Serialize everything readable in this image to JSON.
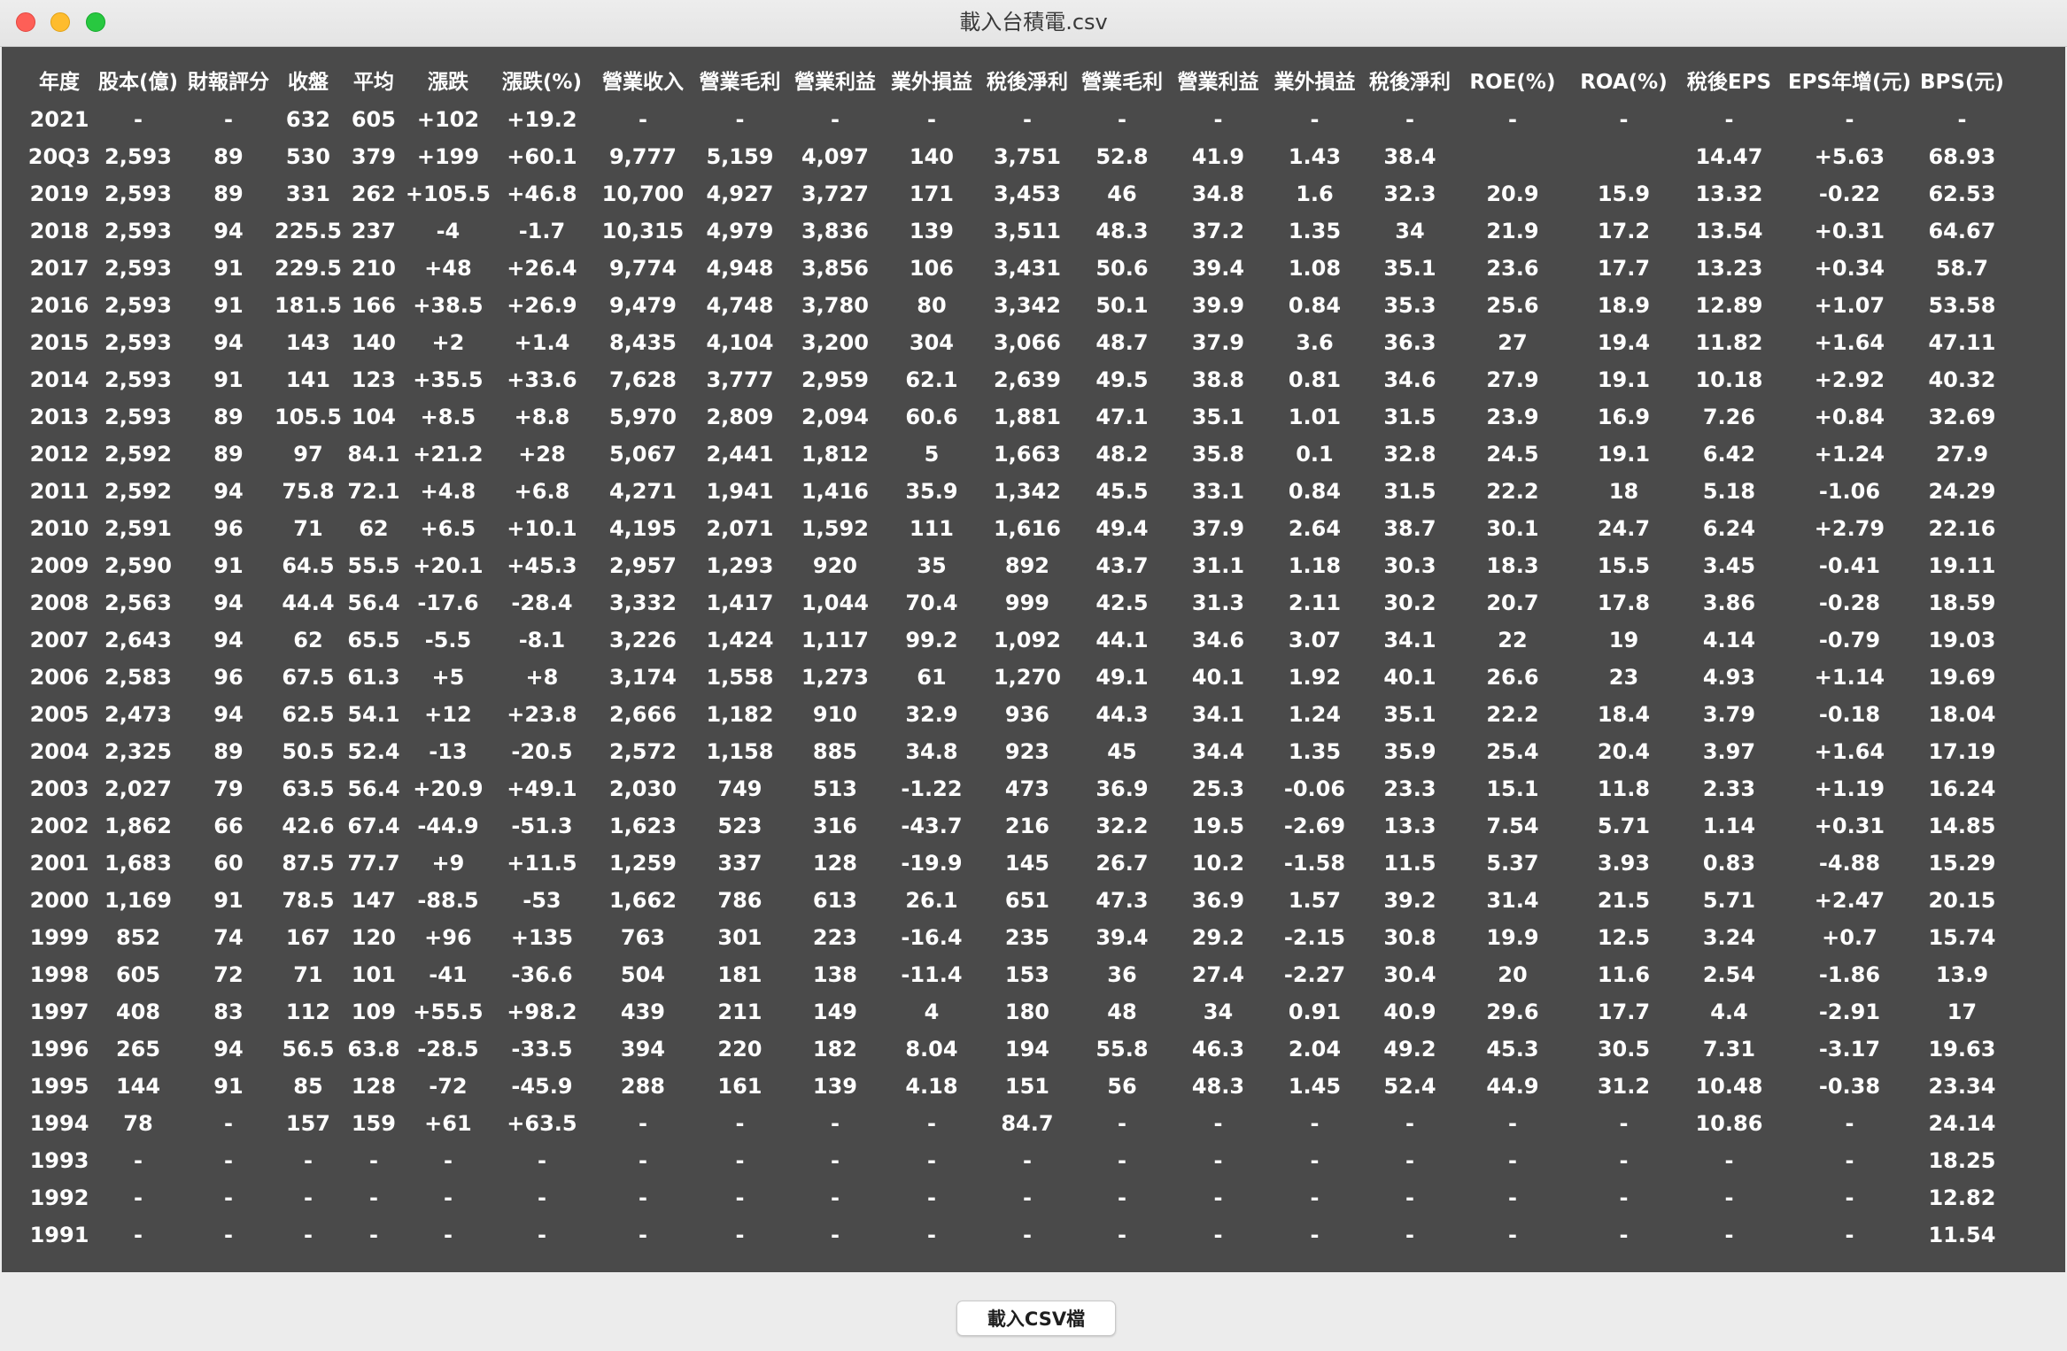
{
  "window": {
    "title": "載入台積電.csv"
  },
  "table": {
    "headers": [
      "年度",
      "股本(億)",
      "財報評分",
      "收盤",
      "平均",
      "漲跌",
      "漲跌(%)",
      "營業收入",
      "營業毛利",
      "營業利益",
      "業外損益",
      "稅後淨利",
      "營業毛利",
      "營業利益",
      "業外損益",
      "稅後淨利",
      "ROE(%)",
      "ROA(%)",
      "稅後EPS",
      "EPS年增(元)",
      "BPS(元)"
    ],
    "rows": [
      [
        "2021",
        "-",
        "-",
        "632",
        "605",
        "+102",
        "+19.2",
        "-",
        "-",
        "-",
        "-",
        "-",
        "-",
        "-",
        "-",
        "-",
        "-",
        "-",
        "-",
        "-",
        "-"
      ],
      [
        "20Q3",
        "2,593",
        "89",
        "530",
        "379",
        "+199",
        "+60.1",
        "9,777",
        "5,159",
        "4,097",
        "140",
        "3,751",
        "52.8",
        "41.9",
        "1.43",
        "38.4",
        "",
        "",
        "14.47",
        "+5.63",
        "68.93"
      ],
      [
        "2019",
        "2,593",
        "89",
        "331",
        "262",
        "+105.5",
        "+46.8",
        "10,700",
        "4,927",
        "3,727",
        "171",
        "3,453",
        "46",
        "34.8",
        "1.6",
        "32.3",
        "20.9",
        "15.9",
        "13.32",
        "-0.22",
        "62.53"
      ],
      [
        "2018",
        "2,593",
        "94",
        "225.5",
        "237",
        "-4",
        "-1.7",
        "10,315",
        "4,979",
        "3,836",
        "139",
        "3,511",
        "48.3",
        "37.2",
        "1.35",
        "34",
        "21.9",
        "17.2",
        "13.54",
        "+0.31",
        "64.67"
      ],
      [
        "2017",
        "2,593",
        "91",
        "229.5",
        "210",
        "+48",
        "+26.4",
        "9,774",
        "4,948",
        "3,856",
        "106",
        "3,431",
        "50.6",
        "39.4",
        "1.08",
        "35.1",
        "23.6",
        "17.7",
        "13.23",
        "+0.34",
        "58.7"
      ],
      [
        "2016",
        "2,593",
        "91",
        "181.5",
        "166",
        "+38.5",
        "+26.9",
        "9,479",
        "4,748",
        "3,780",
        "80",
        "3,342",
        "50.1",
        "39.9",
        "0.84",
        "35.3",
        "25.6",
        "18.9",
        "12.89",
        "+1.07",
        "53.58"
      ],
      [
        "2015",
        "2,593",
        "94",
        "143",
        "140",
        "+2",
        "+1.4",
        "8,435",
        "4,104",
        "3,200",
        "304",
        "3,066",
        "48.7",
        "37.9",
        "3.6",
        "36.3",
        "27",
        "19.4",
        "11.82",
        "+1.64",
        "47.11"
      ],
      [
        "2014",
        "2,593",
        "91",
        "141",
        "123",
        "+35.5",
        "+33.6",
        "7,628",
        "3,777",
        "2,959",
        "62.1",
        "2,639",
        "49.5",
        "38.8",
        "0.81",
        "34.6",
        "27.9",
        "19.1",
        "10.18",
        "+2.92",
        "40.32"
      ],
      [
        "2013",
        "2,593",
        "89",
        "105.5",
        "104",
        "+8.5",
        "+8.8",
        "5,970",
        "2,809",
        "2,094",
        "60.6",
        "1,881",
        "47.1",
        "35.1",
        "1.01",
        "31.5",
        "23.9",
        "16.9",
        "7.26",
        "+0.84",
        "32.69"
      ],
      [
        "2012",
        "2,592",
        "89",
        "97",
        "84.1",
        "+21.2",
        "+28",
        "5,067",
        "2,441",
        "1,812",
        "5",
        "1,663",
        "48.2",
        "35.8",
        "0.1",
        "32.8",
        "24.5",
        "19.1",
        "6.42",
        "+1.24",
        "27.9"
      ],
      [
        "2011",
        "2,592",
        "94",
        "75.8",
        "72.1",
        "+4.8",
        "+6.8",
        "4,271",
        "1,941",
        "1,416",
        "35.9",
        "1,342",
        "45.5",
        "33.1",
        "0.84",
        "31.5",
        "22.2",
        "18",
        "5.18",
        "-1.06",
        "24.29"
      ],
      [
        "2010",
        "2,591",
        "96",
        "71",
        "62",
        "+6.5",
        "+10.1",
        "4,195",
        "2,071",
        "1,592",
        "111",
        "1,616",
        "49.4",
        "37.9",
        "2.64",
        "38.7",
        "30.1",
        "24.7",
        "6.24",
        "+2.79",
        "22.16"
      ],
      [
        "2009",
        "2,590",
        "91",
        "64.5",
        "55.5",
        "+20.1",
        "+45.3",
        "2,957",
        "1,293",
        "920",
        "35",
        "892",
        "43.7",
        "31.1",
        "1.18",
        "30.3",
        "18.3",
        "15.5",
        "3.45",
        "-0.41",
        "19.11"
      ],
      [
        "2008",
        "2,563",
        "94",
        "44.4",
        "56.4",
        "-17.6",
        "-28.4",
        "3,332",
        "1,417",
        "1,044",
        "70.4",
        "999",
        "42.5",
        "31.3",
        "2.11",
        "30.2",
        "20.7",
        "17.8",
        "3.86",
        "-0.28",
        "18.59"
      ],
      [
        "2007",
        "2,643",
        "94",
        "62",
        "65.5",
        "-5.5",
        "-8.1",
        "3,226",
        "1,424",
        "1,117",
        "99.2",
        "1,092",
        "44.1",
        "34.6",
        "3.07",
        "34.1",
        "22",
        "19",
        "4.14",
        "-0.79",
        "19.03"
      ],
      [
        "2006",
        "2,583",
        "96",
        "67.5",
        "61.3",
        "+5",
        "+8",
        "3,174",
        "1,558",
        "1,273",
        "61",
        "1,270",
        "49.1",
        "40.1",
        "1.92",
        "40.1",
        "26.6",
        "23",
        "4.93",
        "+1.14",
        "19.69"
      ],
      [
        "2005",
        "2,473",
        "94",
        "62.5",
        "54.1",
        "+12",
        "+23.8",
        "2,666",
        "1,182",
        "910",
        "32.9",
        "936",
        "44.3",
        "34.1",
        "1.24",
        "35.1",
        "22.2",
        "18.4",
        "3.79",
        "-0.18",
        "18.04"
      ],
      [
        "2004",
        "2,325",
        "89",
        "50.5",
        "52.4",
        "-13",
        "-20.5",
        "2,572",
        "1,158",
        "885",
        "34.8",
        "923",
        "45",
        "34.4",
        "1.35",
        "35.9",
        "25.4",
        "20.4",
        "3.97",
        "+1.64",
        "17.19"
      ],
      [
        "2003",
        "2,027",
        "79",
        "63.5",
        "56.4",
        "+20.9",
        "+49.1",
        "2,030",
        "749",
        "513",
        "-1.22",
        "473",
        "36.9",
        "25.3",
        "-0.06",
        "23.3",
        "15.1",
        "11.8",
        "2.33",
        "+1.19",
        "16.24"
      ],
      [
        "2002",
        "1,862",
        "66",
        "42.6",
        "67.4",
        "-44.9",
        "-51.3",
        "1,623",
        "523",
        "316",
        "-43.7",
        "216",
        "32.2",
        "19.5",
        "-2.69",
        "13.3",
        "7.54",
        "5.71",
        "1.14",
        "+0.31",
        "14.85"
      ],
      [
        "2001",
        "1,683",
        "60",
        "87.5",
        "77.7",
        "+9",
        "+11.5",
        "1,259",
        "337",
        "128",
        "-19.9",
        "145",
        "26.7",
        "10.2",
        "-1.58",
        "11.5",
        "5.37",
        "3.93",
        "0.83",
        "-4.88",
        "15.29"
      ],
      [
        "2000",
        "1,169",
        "91",
        "78.5",
        "147",
        "-88.5",
        "-53",
        "1,662",
        "786",
        "613",
        "26.1",
        "651",
        "47.3",
        "36.9",
        "1.57",
        "39.2",
        "31.4",
        "21.5",
        "5.71",
        "+2.47",
        "20.15"
      ],
      [
        "1999",
        "852",
        "74",
        "167",
        "120",
        "+96",
        "+135",
        "763",
        "301",
        "223",
        "-16.4",
        "235",
        "39.4",
        "29.2",
        "-2.15",
        "30.8",
        "19.9",
        "12.5",
        "3.24",
        "+0.7",
        "15.74"
      ],
      [
        "1998",
        "605",
        "72",
        "71",
        "101",
        "-41",
        "-36.6",
        "504",
        "181",
        "138",
        "-11.4",
        "153",
        "36",
        "27.4",
        "-2.27",
        "30.4",
        "20",
        "11.6",
        "2.54",
        "-1.86",
        "13.9"
      ],
      [
        "1997",
        "408",
        "83",
        "112",
        "109",
        "+55.5",
        "+98.2",
        "439",
        "211",
        "149",
        "4",
        "180",
        "48",
        "34",
        "0.91",
        "40.9",
        "29.6",
        "17.7",
        "4.4",
        "-2.91",
        "17"
      ],
      [
        "1996",
        "265",
        "94",
        "56.5",
        "63.8",
        "-28.5",
        "-33.5",
        "394",
        "220",
        "182",
        "8.04",
        "194",
        "55.8",
        "46.3",
        "2.04",
        "49.2",
        "45.3",
        "30.5",
        "7.31",
        "-3.17",
        "19.63"
      ],
      [
        "1995",
        "144",
        "91",
        "85",
        "128",
        "-72",
        "-45.9",
        "288",
        "161",
        "139",
        "4.18",
        "151",
        "56",
        "48.3",
        "1.45",
        "52.4",
        "44.9",
        "31.2",
        "10.48",
        "-0.38",
        "23.34"
      ],
      [
        "1994",
        "78",
        "-",
        "157",
        "159",
        "+61",
        "+63.5",
        "-",
        "-",
        "-",
        "-",
        "84.7",
        "-",
        "-",
        "-",
        "-",
        "-",
        "-",
        "10.86",
        "-",
        "24.14"
      ],
      [
        "1993",
        "-",
        "-",
        "-",
        "-",
        "-",
        "-",
        "-",
        "-",
        "-",
        "-",
        "-",
        "-",
        "-",
        "-",
        "-",
        "-",
        "-",
        "-",
        "-",
        "18.25"
      ],
      [
        "1992",
        "-",
        "-",
        "-",
        "-",
        "-",
        "-",
        "-",
        "-",
        "-",
        "-",
        "-",
        "-",
        "-",
        "-",
        "-",
        "-",
        "-",
        "-",
        "-",
        "12.82"
      ],
      [
        "1991",
        "-",
        "-",
        "-",
        "-",
        "-",
        "-",
        "-",
        "-",
        "-",
        "-",
        "-",
        "-",
        "-",
        "-",
        "-",
        "-",
        "-",
        "-",
        "-",
        "11.54"
      ]
    ]
  },
  "footer": {
    "load_button_label": "載入CSV檔"
  }
}
